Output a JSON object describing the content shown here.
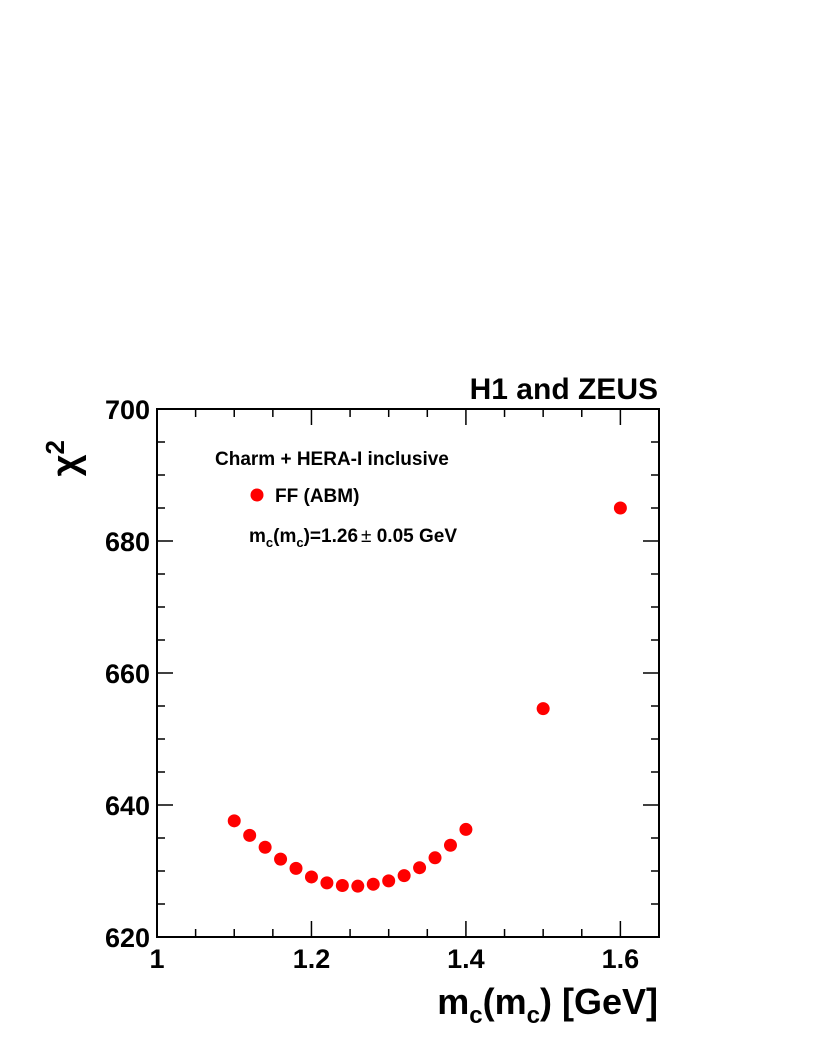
{
  "chart_data": {
    "type": "scatter",
    "header": "H1 and ZEUS",
    "xlabel": {
      "main": "m",
      "sub1": "c",
      "paren_open": "(m",
      "sub2": "c",
      "rest": ") [GeV]"
    },
    "ylabel": {
      "main": "χ",
      "sup": "2"
    },
    "xlim": [
      1.0,
      1.65
    ],
    "ylim": [
      620,
      700
    ],
    "x_ticks": [
      {
        "value": 1.0,
        "label": "1"
      },
      {
        "value": 1.2,
        "label": "1.2"
      },
      {
        "value": 1.4,
        "label": "1.4"
      },
      {
        "value": 1.6,
        "label": "1.6"
      }
    ],
    "y_ticks": [
      {
        "value": 620,
        "label": "620"
      },
      {
        "value": 640,
        "label": "640"
      },
      {
        "value": 660,
        "label": "660"
      },
      {
        "value": 680,
        "label": "680"
      },
      {
        "value": 700,
        "label": "700"
      }
    ],
    "legend": {
      "title": "Charm + HERA-I inclusive",
      "entry": "FF (ABM)",
      "result": {
        "p1": "m",
        "s1": "c",
        "p2": "(m",
        "s2": "c",
        "p3": ")=1.26",
        "pm": "±",
        "p4": " 0.05 GeV"
      }
    },
    "series": [
      {
        "name": "FF (ABM)",
        "color": "#ff0000",
        "marker": "circle",
        "x": [
          1.1,
          1.12,
          1.14,
          1.16,
          1.18,
          1.2,
          1.22,
          1.24,
          1.26,
          1.28,
          1.3,
          1.32,
          1.34,
          1.36,
          1.38,
          1.4,
          1.5,
          1.6
        ],
        "y": [
          637.6,
          635.4,
          633.6,
          631.8,
          630.4,
          629.1,
          628.2,
          627.8,
          627.7,
          628.0,
          628.5,
          629.3,
          630.5,
          632.0,
          633.9,
          636.3,
          654.6,
          685.0
        ]
      }
    ]
  }
}
